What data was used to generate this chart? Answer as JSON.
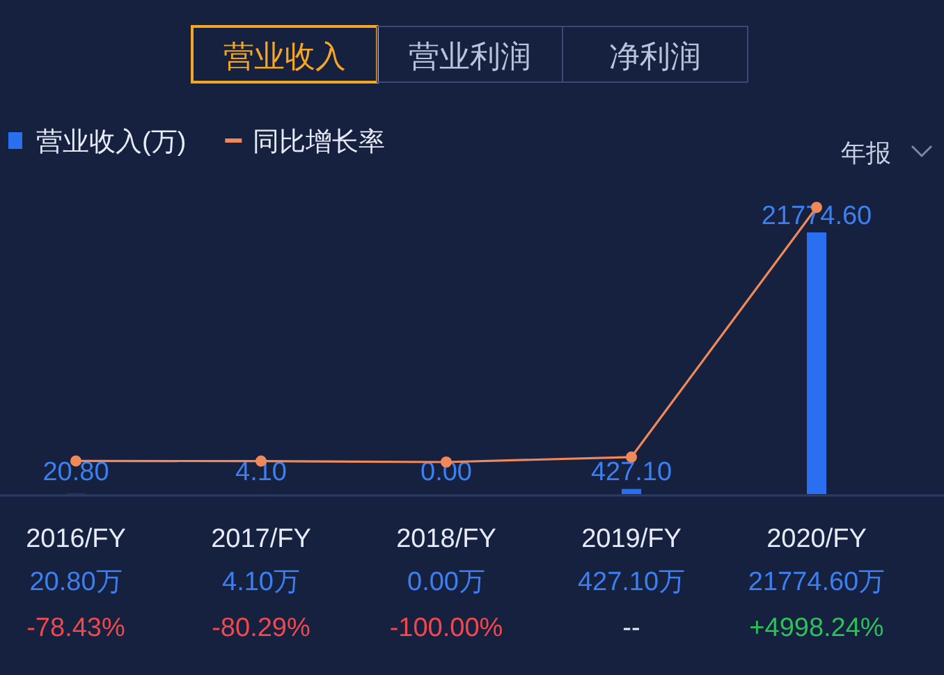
{
  "chart_data": {
    "type": "bar",
    "categories": [
      "2016/FY",
      "2017/FY",
      "2018/FY",
      "2019/FY",
      "2020/FY"
    ],
    "series": [
      {
        "name": "营业收入(万)",
        "color": "#2a6ff0",
        "values": [
          20.8,
          4.1,
          0.0,
          427.1,
          21774.6
        ],
        "value_labels": [
          "20.80",
          "4.10",
          "0.00",
          "427.10",
          "21774.60"
        ]
      },
      {
        "name": "同比增长率",
        "type": "line",
        "axis": "y2",
        "color": "#f0895a",
        "values": [
          -78.43,
          -80.29,
          -100.0,
          0,
          4998.24
        ],
        "value_labels": [
          "-78.43%",
          "-80.29%",
          "-100.00%",
          "--",
          "+4998.24%"
        ]
      }
    ],
    "legend": "top left",
    "marker": "circle",
    "tick_labels": "x",
    "annotations": [
      "营业收入",
      "营业利润",
      "净利润",
      "年报",
      "20.80万",
      "4.10万",
      "0.00万",
      "427.10万",
      "21774.60万"
    ]
  }
}
